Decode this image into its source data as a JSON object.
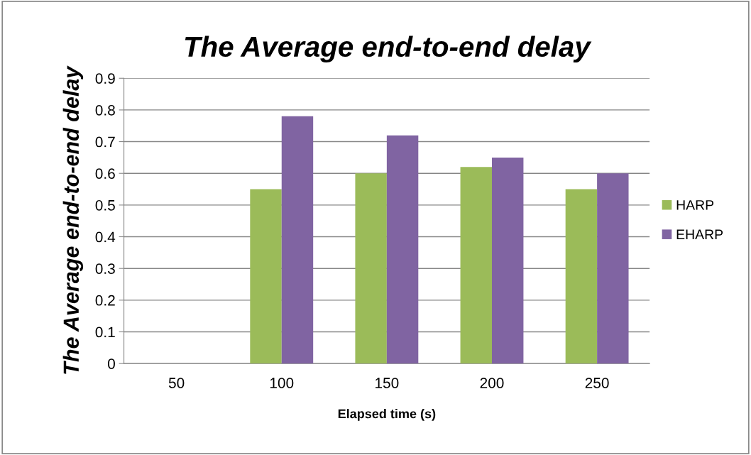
{
  "chart_data": {
    "type": "bar",
    "title": "The Average end-to-end delay",
    "xlabel": "Elapsed time (s)",
    "ylabel": "The Average end-to-end delay",
    "categories": [
      "50",
      "100",
      "150",
      "200",
      "250"
    ],
    "series": [
      {
        "name": "HARP",
        "color": "#9bbb59",
        "values": [
          null,
          0.55,
          0.6,
          0.62,
          0.55
        ]
      },
      {
        "name": "EHARP",
        "color": "#8064a2",
        "values": [
          null,
          0.78,
          0.72,
          0.65,
          0.6
        ]
      }
    ],
    "ylim": [
      0,
      0.9
    ],
    "yticks": [
      0,
      0.1,
      0.2,
      0.3,
      0.4,
      0.5,
      0.6,
      0.7,
      0.8,
      0.9
    ],
    "grid": "y",
    "legend": "right"
  }
}
